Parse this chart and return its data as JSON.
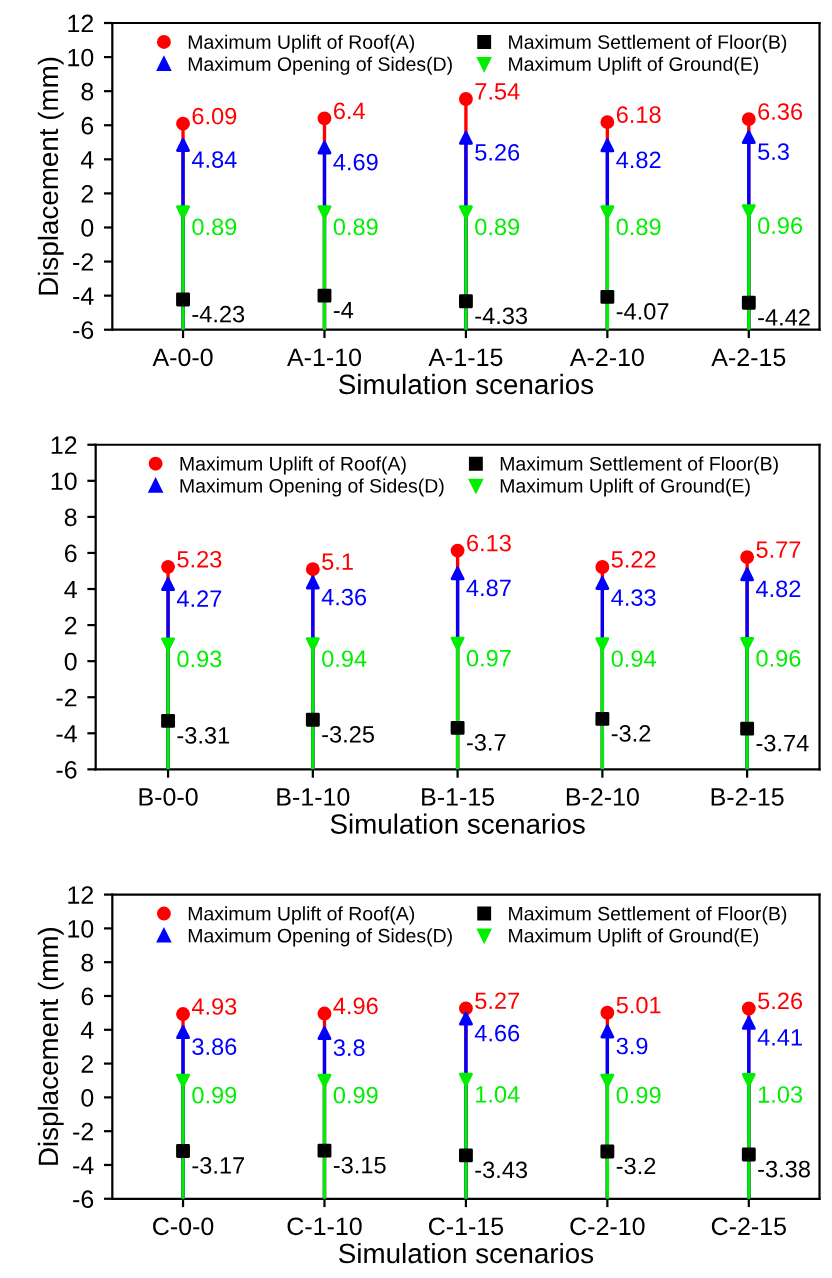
{
  "chart_data": [
    {
      "type": "lollipop",
      "xlabel": "Simulation scenarios",
      "ylabel": "Displacement (mm)",
      "categories": [
        "A-0-0",
        "A-1-10",
        "A-1-15",
        "A-2-10",
        "A-2-15"
      ],
      "ylim": [
        -6,
        12
      ],
      "yticks": [
        -6,
        -4,
        -2,
        0,
        2,
        4,
        6,
        8,
        10,
        12
      ],
      "data_labels": true,
      "legend": "top",
      "grid": false,
      "series": [
        {
          "name": "Maximum Uplift of Roof(A)",
          "color": "#ff0000",
          "marker": "circle",
          "values": [
            6.09,
            6.4,
            7.54,
            6.18,
            6.36
          ]
        },
        {
          "name": "Maximum Opening of Sides(D)",
          "color": "#0000ff",
          "marker": "triangle",
          "values": [
            4.84,
            4.69,
            5.26,
            4.82,
            5.3
          ]
        },
        {
          "name": "Maximum Settlement of Floor(B)",
          "color": "#000000",
          "marker": "square",
          "type": "scatter",
          "values": [
            -4.23,
            -4,
            -4.33,
            -4.07,
            -4.42
          ]
        },
        {
          "name": "Maximum Uplift of Ground(E)",
          "color": "#00ee00",
          "marker": "triangle_down",
          "values": [
            0.89,
            0.89,
            0.89,
            0.89,
            0.96
          ]
        }
      ]
    },
    {
      "type": "lollipop",
      "xlabel": "Simulation scenarios",
      "categories": [
        "B-0-0",
        "B-1-10",
        "B-1-15",
        "B-2-10",
        "B-2-15"
      ],
      "ylim": [
        -6,
        12
      ],
      "yticks": [
        -6,
        -4,
        -2,
        0,
        2,
        4,
        6,
        8,
        10,
        12
      ],
      "data_labels": true,
      "legend": "top",
      "grid": false,
      "series": [
        {
          "name": "Maximum Uplift of Roof(A)",
          "color": "#ff0000",
          "marker": "circle",
          "values": [
            5.23,
            5.1,
            6.13,
            5.22,
            5.77
          ]
        },
        {
          "name": "Maximum Opening of Sides(D)",
          "color": "#0000ff",
          "marker": "triangle",
          "values": [
            4.27,
            4.36,
            4.87,
            4.33,
            4.82
          ]
        },
        {
          "name": "Maximum Settlement of Floor(B)",
          "color": "#000000",
          "marker": "square",
          "type": "scatter",
          "values": [
            -3.31,
            -3.25,
            -3.7,
            -3.2,
            -3.74
          ]
        },
        {
          "name": "Maximum Uplift of Ground(E)",
          "color": "#00ee00",
          "marker": "triangle_down",
          "values": [
            0.93,
            0.94,
            0.97,
            0.94,
            0.96
          ]
        }
      ]
    },
    {
      "type": "lollipop",
      "xlabel": "Simulation scenarios",
      "ylabel": "Displacement (mm)",
      "categories": [
        "C-0-0",
        "C-1-10",
        "C-1-15",
        "C-2-10",
        "C-2-15"
      ],
      "ylim": [
        -6,
        12
      ],
      "yticks": [
        -6,
        -4,
        -2,
        0,
        2,
        4,
        6,
        8,
        10,
        12
      ],
      "data_labels": true,
      "legend": "top",
      "grid": false,
      "series": [
        {
          "name": "Maximum Uplift of Roof(A)",
          "color": "#ff0000",
          "marker": "circle",
          "values": [
            4.93,
            4.96,
            5.27,
            5.01,
            5.26
          ]
        },
        {
          "name": "Maximum Opening of Sides(D)",
          "color": "#0000ff",
          "marker": "triangle",
          "values": [
            3.86,
            3.8,
            4.66,
            3.9,
            4.41
          ]
        },
        {
          "name": "Maximum Settlement of Floor(B)",
          "color": "#000000",
          "marker": "square",
          "type": "scatter",
          "values": [
            -3.17,
            -3.15,
            -3.43,
            -3.2,
            -3.38
          ]
        },
        {
          "name": "Maximum Uplift of Ground(E)",
          "color": "#00ee00",
          "marker": "triangle_down",
          "values": [
            0.99,
            0.99,
            1.04,
            0.99,
            1.03
          ]
        }
      ]
    }
  ]
}
